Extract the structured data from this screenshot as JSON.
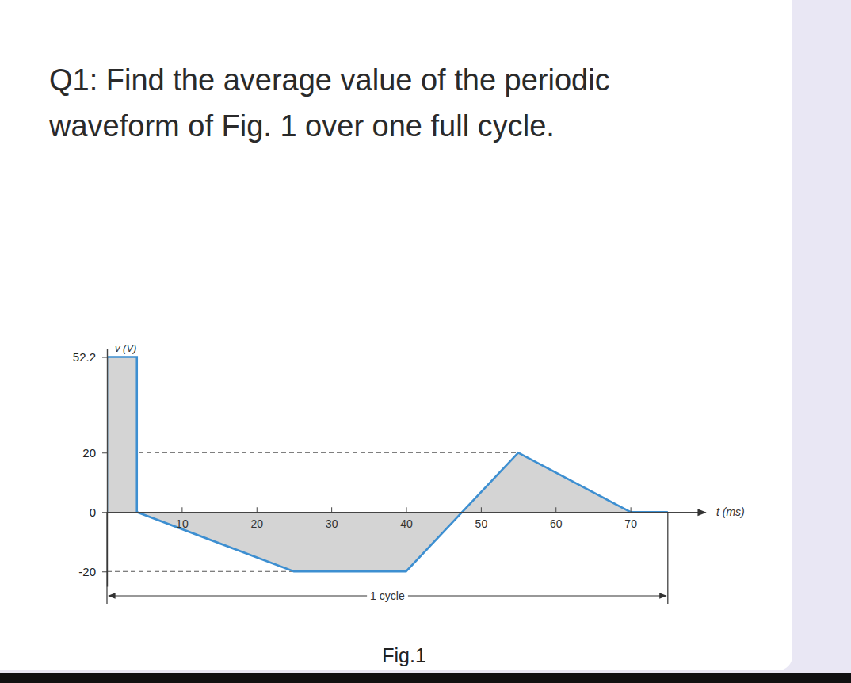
{
  "chart_data": {
    "type": "area",
    "title": "Q1: Find the average value of the periodic waveform of Fig. 1 over one full cycle.",
    "caption": "Fig.1",
    "x_label": "t (ms)",
    "y_label": "v (V)",
    "annotation": "1 cycle",
    "cycle": [
      0,
      75
    ],
    "x": [
      0,
      0,
      4,
      4,
      25,
      40,
      55,
      70,
      75
    ],
    "values": [
      0,
      52.2,
      52.2,
      0,
      -20,
      -20,
      20,
      0,
      0
    ],
    "color": "#3d8fd1",
    "xlim": [
      0,
      80
    ],
    "xticks": [
      10,
      20,
      30,
      40,
      50,
      60,
      70
    ],
    "ylim": [
      -25,
      55
    ],
    "yticks": [
      52.2,
      20,
      0,
      -20
    ]
  }
}
